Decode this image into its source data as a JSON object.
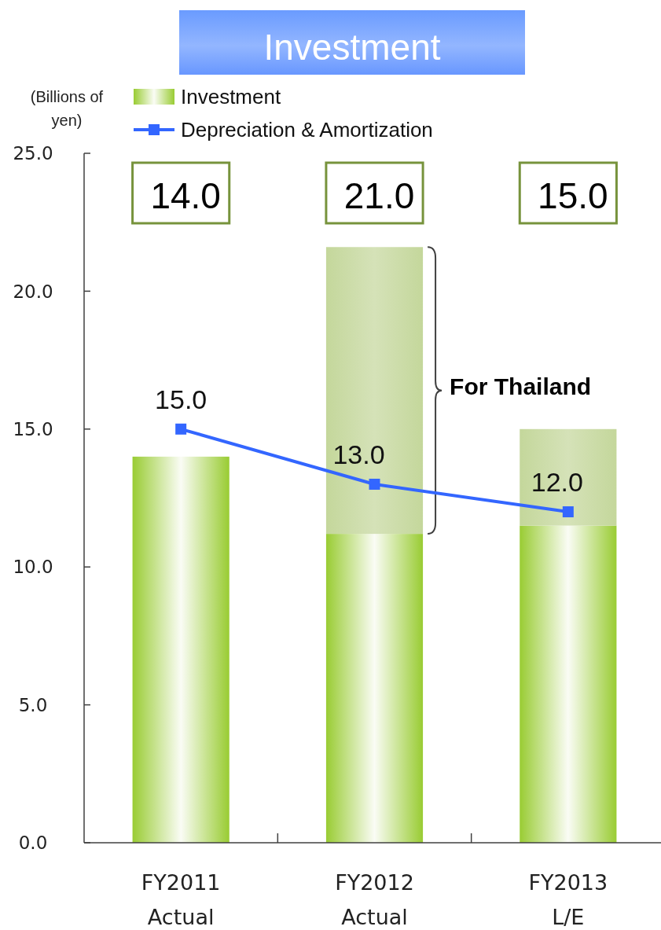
{
  "chart_data": {
    "type": "bar",
    "title": "Investment",
    "ylabel": "(Billions of yen)",
    "categories": [
      "FY2011 Actual",
      "FY2012 Actual",
      "FY2013 L/E"
    ],
    "series": [
      {
        "name": "Investment",
        "color": "#99cc33",
        "values": [
          14.0,
          11.2,
          11.5
        ]
      },
      {
        "color": "#c4d79b",
        "values": [
          null,
          10.4,
          3.5
        ]
      },
      {
        "name": "Depreciation & Amortization",
        "type": "line",
        "color": "#3366ff",
        "values": [
          15.0,
          13.0,
          12.0
        ],
        "value_labels": [
          "15.0",
          "13.0",
          "12.0"
        ]
      }
    ],
    "stacked": true,
    "marker": "square",
    "legend": "top left",
    "ylim": [
      0,
      25
    ],
    "yticks": [
      {
        "value": 0,
        "label": "0.0"
      },
      {
        "value": 5,
        "label": "5.0"
      },
      {
        "value": 10,
        "label": "10.0"
      },
      {
        "value": 15,
        "label": "15.0"
      },
      {
        "value": 20,
        "label": "20.0"
      },
      {
        "value": 25,
        "label": "25.0"
      }
    ],
    "annotations": [
      "14.0",
      "21.0",
      "15.0",
      "For Thailand"
    ]
  }
}
